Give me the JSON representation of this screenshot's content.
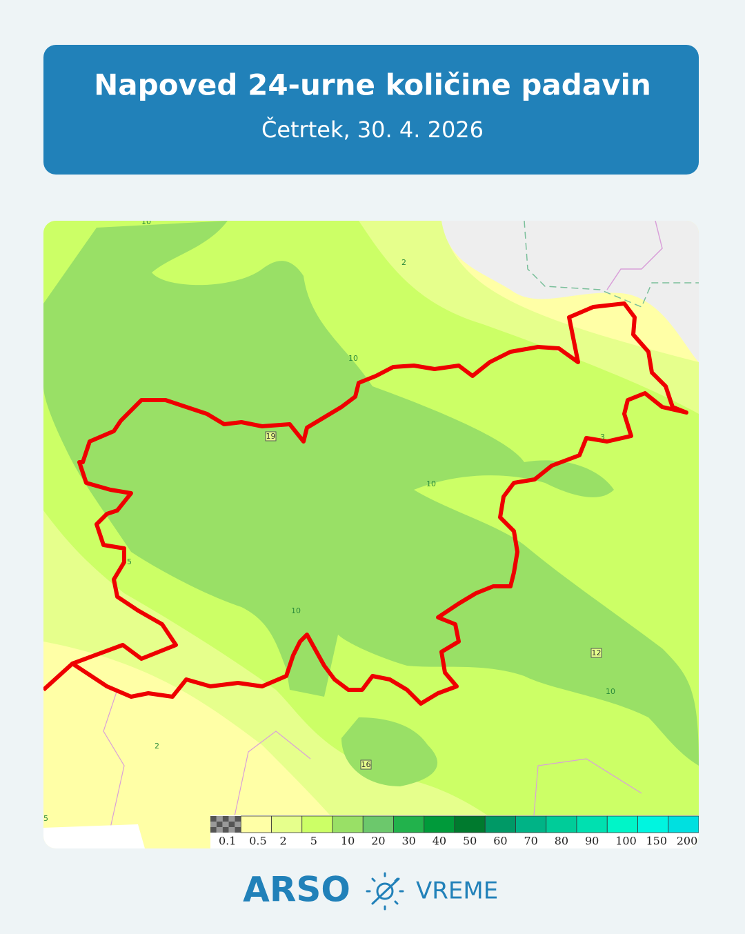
{
  "header": {
    "title": "Napoved 24-urne količine padavin",
    "subtitle": "Četrtek, 30. 4. 2026"
  },
  "map": {
    "contour_labels": [
      "10",
      "2",
      "10",
      "10",
      "10",
      "10",
      "5",
      "2",
      "3",
      "5"
    ],
    "point_labels": [
      "19",
      "12",
      "16"
    ],
    "legend": [
      {
        "label": "0.1",
        "color": "#555555"
      },
      {
        "label": "0.5",
        "color": "#ffffa6"
      },
      {
        "label": "2",
        "color": "#e6ff8c"
      },
      {
        "label": "5",
        "color": "#ccff66"
      },
      {
        "label": "10",
        "color": "#99e066"
      },
      {
        "label": "20",
        "color": "#6cc86c"
      },
      {
        "label": "30",
        "color": "#22b24c"
      },
      {
        "label": "40",
        "color": "#009a3a"
      },
      {
        "label": "50",
        "color": "#007a2e"
      },
      {
        "label": "60",
        "color": "#009966"
      },
      {
        "label": "70",
        "color": "#00b386"
      },
      {
        "label": "80",
        "color": "#00cc99"
      },
      {
        "label": "90",
        "color": "#00e0b0"
      },
      {
        "label": "100",
        "color": "#00f5c8"
      },
      {
        "label": "150",
        "color": "#00f5e0"
      },
      {
        "label": "200",
        "color": "#00e0e0"
      }
    ]
  },
  "footer": {
    "brand": "ARSO",
    "section": "VREME"
  }
}
